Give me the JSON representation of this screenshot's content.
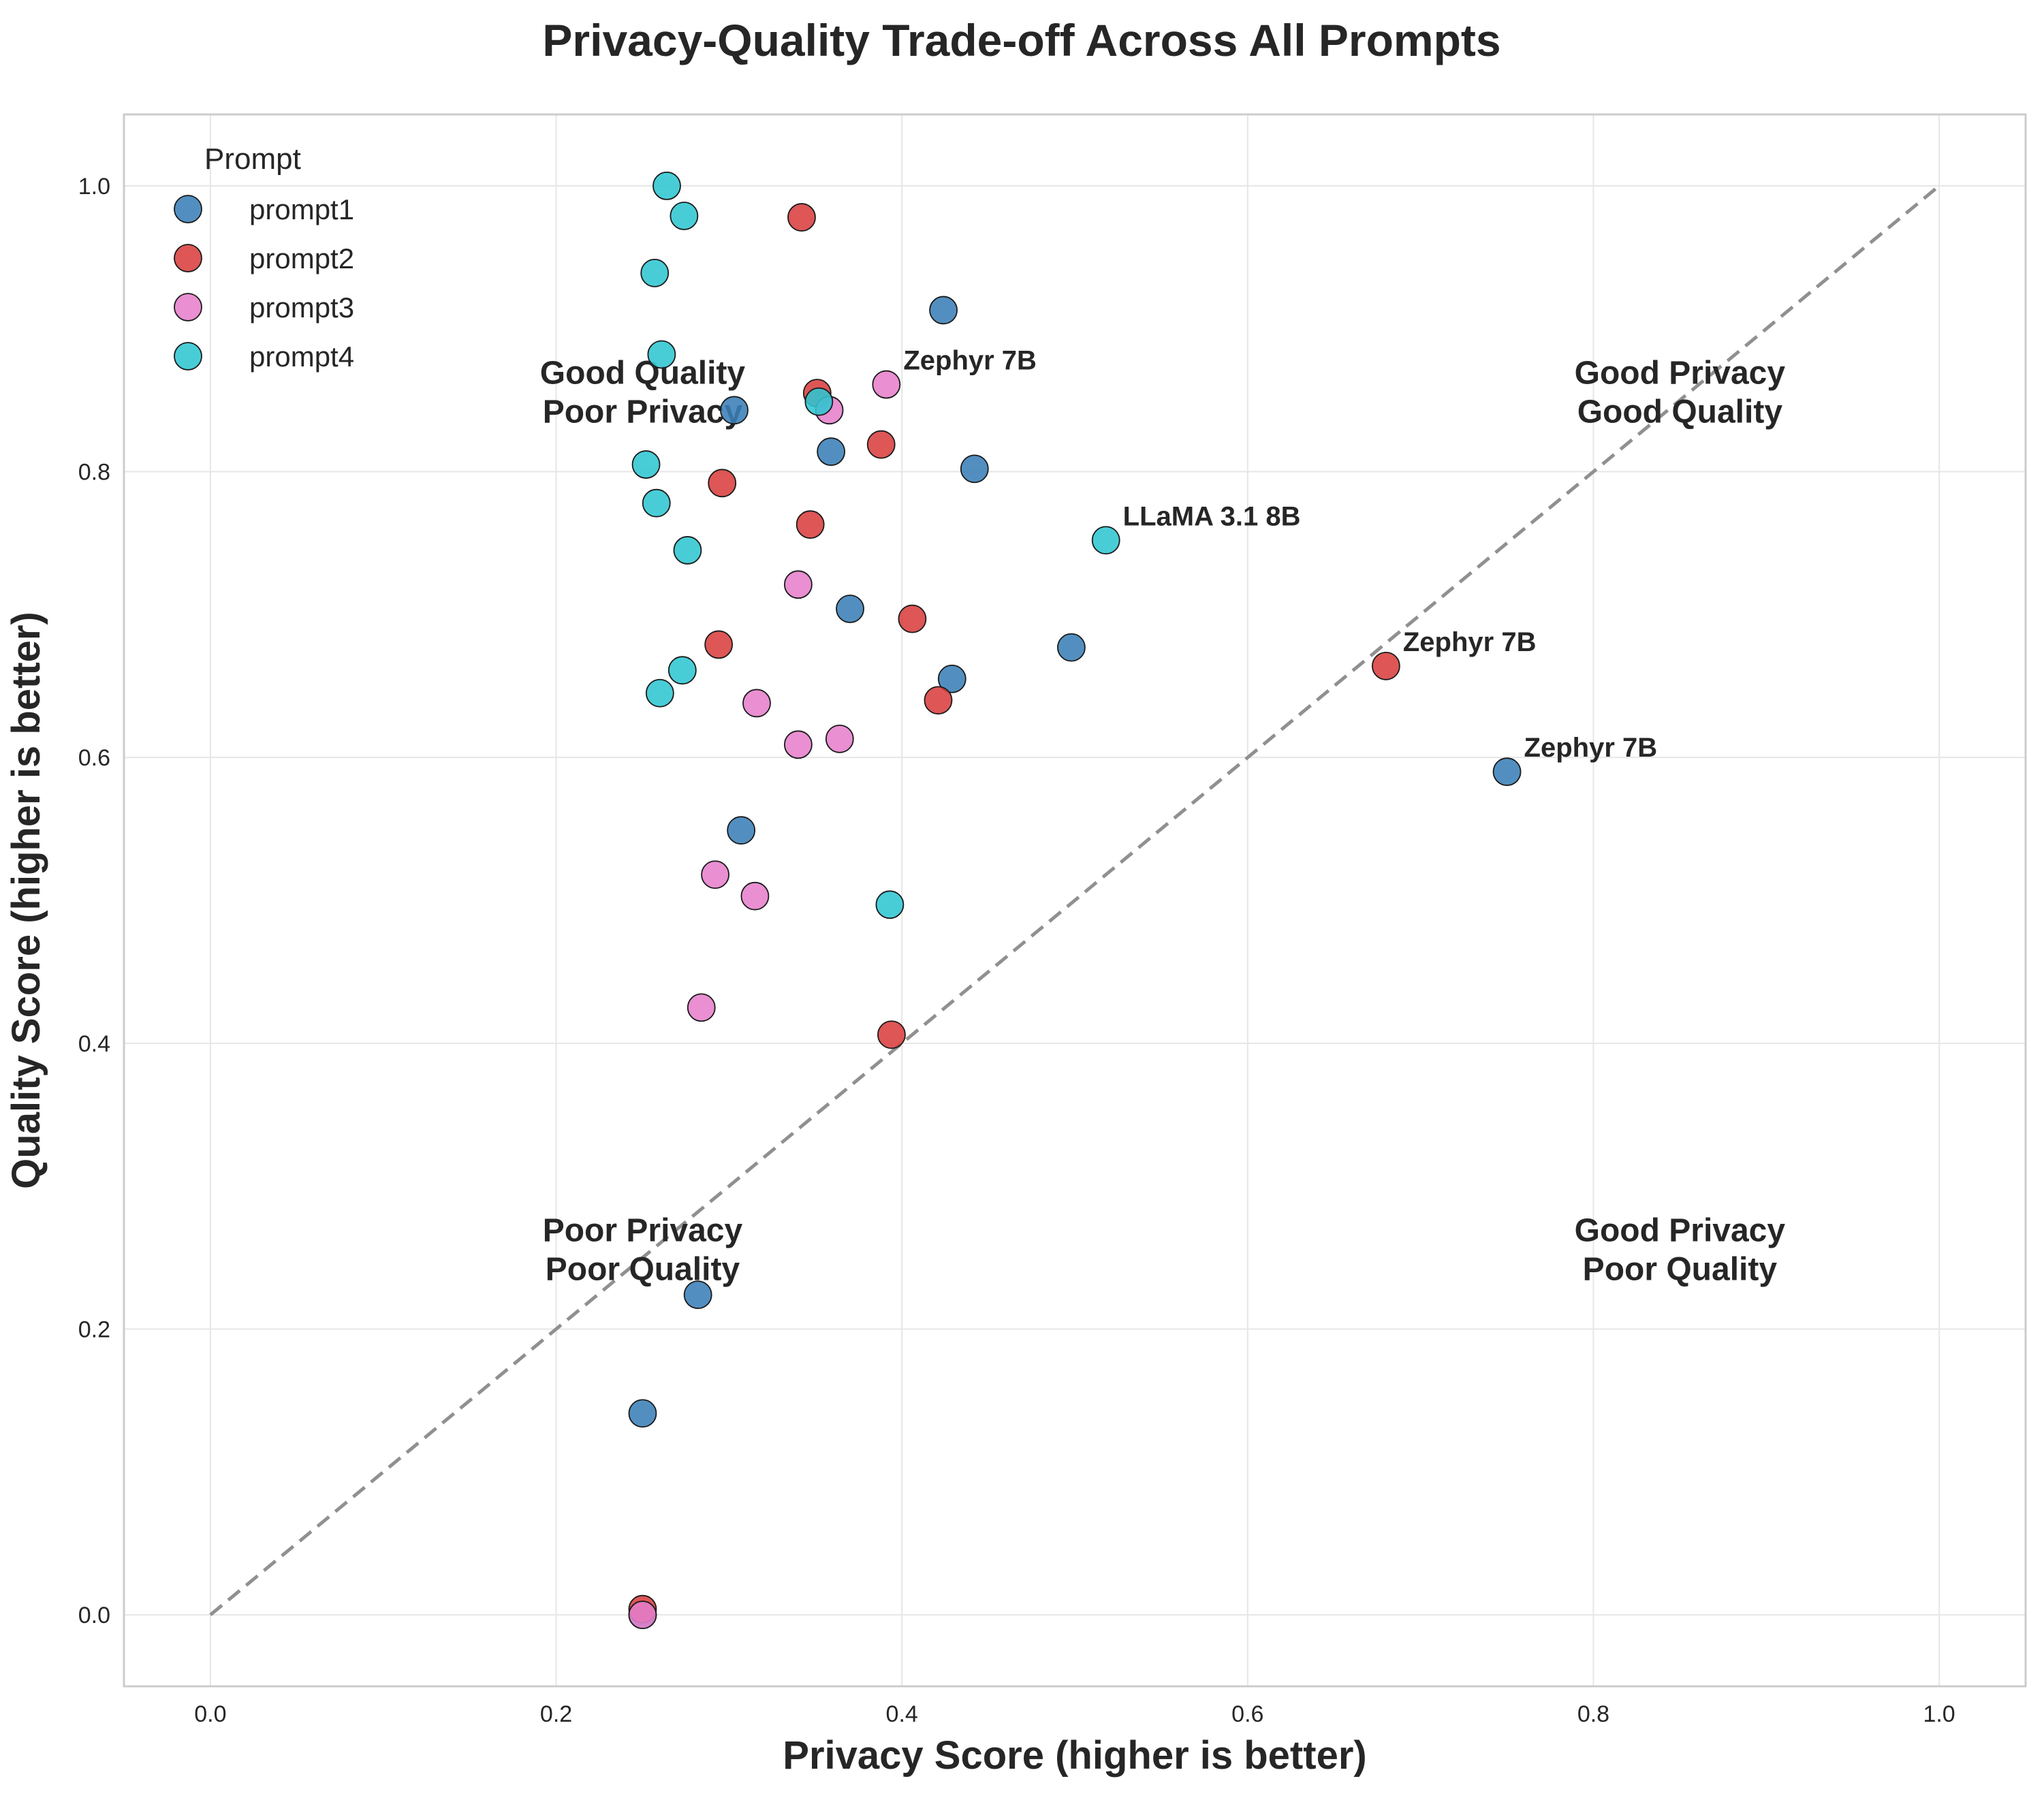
{
  "chart_data": {
    "type": "scatter",
    "title": "Privacy-Quality Trade-off Across All Prompts",
    "xlabel": "Privacy Score (higher is better)",
    "ylabel": "Quality Score (higher is better)",
    "xlim": [
      -0.05,
      1.05
    ],
    "ylim": [
      -0.05,
      1.05
    ],
    "xticks": [
      0.0,
      0.2,
      0.4,
      0.6,
      0.8,
      1.0
    ],
    "yticks": [
      0.0,
      0.2,
      0.4,
      0.6,
      0.8,
      1.0
    ],
    "tick_labels_x": [
      "0.0",
      "0.2",
      "0.4",
      "0.6",
      "0.8",
      "1.0"
    ],
    "tick_labels_y": [
      "0.0",
      "0.2",
      "0.4",
      "0.6",
      "0.8",
      "1.0"
    ],
    "grid": true,
    "reference_line": {
      "from": [
        0,
        0
      ],
      "to": [
        1,
        1
      ],
      "style": "dashed",
      "color": "#909090"
    },
    "legend": {
      "title": "Prompt",
      "placement": "top-left"
    },
    "series": [
      {
        "name": "prompt1",
        "color": "#3a7fb7",
        "points": [
          {
            "x": 0.303,
            "y": 0.843
          },
          {
            "x": 0.424,
            "y": 0.913
          },
          {
            "x": 0.359,
            "y": 0.814
          },
          {
            "x": 0.442,
            "y": 0.802
          },
          {
            "x": 0.37,
            "y": 0.704
          },
          {
            "x": 0.498,
            "y": 0.677
          },
          {
            "x": 0.429,
            "y": 0.655
          },
          {
            "x": 0.307,
            "y": 0.549
          },
          {
            "x": 0.75,
            "y": 0.59
          },
          {
            "x": 0.282,
            "y": 0.224
          },
          {
            "x": 0.25,
            "y": 0.141
          },
          {
            "x": 0.25,
            "y": 0.0
          }
        ]
      },
      {
        "name": "prompt2",
        "color": "#d93f3f",
        "points": [
          {
            "x": 0.342,
            "y": 0.978
          },
          {
            "x": 0.351,
            "y": 0.855
          },
          {
            "x": 0.388,
            "y": 0.819
          },
          {
            "x": 0.296,
            "y": 0.792
          },
          {
            "x": 0.347,
            "y": 0.763
          },
          {
            "x": 0.406,
            "y": 0.697
          },
          {
            "x": 0.294,
            "y": 0.679
          },
          {
            "x": 0.421,
            "y": 0.64
          },
          {
            "x": 0.68,
            "y": 0.664
          },
          {
            "x": 0.394,
            "y": 0.406
          },
          {
            "x": 0.25,
            "y": 0.004
          }
        ]
      },
      {
        "name": "prompt3",
        "color": "#e67fcc",
        "points": [
          {
            "x": 0.391,
            "y": 0.861
          },
          {
            "x": 0.358,
            "y": 0.843
          },
          {
            "x": 0.34,
            "y": 0.721
          },
          {
            "x": 0.316,
            "y": 0.638
          },
          {
            "x": 0.34,
            "y": 0.609
          },
          {
            "x": 0.364,
            "y": 0.613
          },
          {
            "x": 0.292,
            "y": 0.518
          },
          {
            "x": 0.315,
            "y": 0.503
          },
          {
            "x": 0.284,
            "y": 0.425
          },
          {
            "x": 0.25,
            "y": 0.0
          }
        ]
      },
      {
        "name": "prompt4",
        "color": "#2fc6d1",
        "points": [
          {
            "x": 0.264,
            "y": 1.0
          },
          {
            "x": 0.274,
            "y": 0.979
          },
          {
            "x": 0.257,
            "y": 0.939
          },
          {
            "x": 0.261,
            "y": 0.882
          },
          {
            "x": 0.352,
            "y": 0.849
          },
          {
            "x": 0.252,
            "y": 0.805
          },
          {
            "x": 0.258,
            "y": 0.778
          },
          {
            "x": 0.276,
            "y": 0.745
          },
          {
            "x": 0.518,
            "y": 0.752
          },
          {
            "x": 0.273,
            "y": 0.661
          },
          {
            "x": 0.26,
            "y": 0.645
          },
          {
            "x": 0.393,
            "y": 0.497
          }
        ]
      }
    ],
    "annotations": [
      {
        "text": "Zephyr 7B",
        "x": 0.391,
        "y": 0.861
      },
      {
        "text": "LLaMA 3.1 8B",
        "x": 0.518,
        "y": 0.752
      },
      {
        "text": "Zephyr 7B",
        "x": 0.68,
        "y": 0.664
      },
      {
        "text": "Zephyr 7B",
        "x": 0.75,
        "y": 0.59
      }
    ],
    "quadrant_labels": [
      {
        "lines": [
          "Good Quality",
          "Poor Privacy"
        ],
        "x": 0.25,
        "y": 0.87
      },
      {
        "lines": [
          "Good Privacy",
          "Good Quality"
        ],
        "x": 0.85,
        "y": 0.87
      },
      {
        "lines": [
          "Poor Privacy",
          "Poor Quality"
        ],
        "x": 0.25,
        "y": 0.27
      },
      {
        "lines": [
          "Good Privacy",
          "Poor Quality"
        ],
        "x": 0.85,
        "y": 0.27
      }
    ]
  }
}
